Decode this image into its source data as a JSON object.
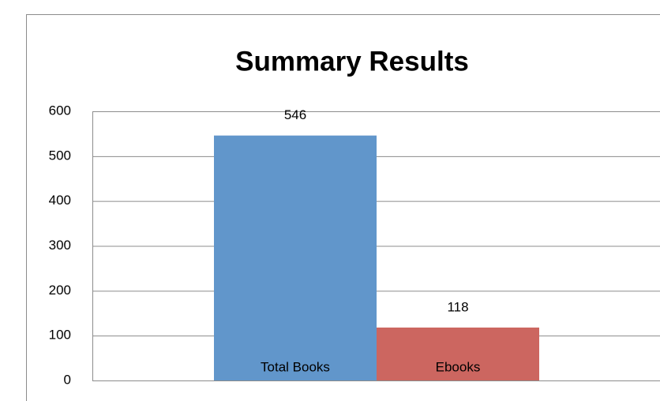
{
  "chart_data": {
    "type": "bar",
    "title": "Summary Results",
    "categories": [
      "Total Books",
      "Ebooks"
    ],
    "values": [
      546,
      118
    ],
    "colors": [
      "#6196cb",
      "#cc6660"
    ],
    "ylim": [
      0,
      600
    ],
    "yticks": [
      0,
      100,
      200,
      300,
      400,
      500,
      600
    ],
    "grid": true
  }
}
